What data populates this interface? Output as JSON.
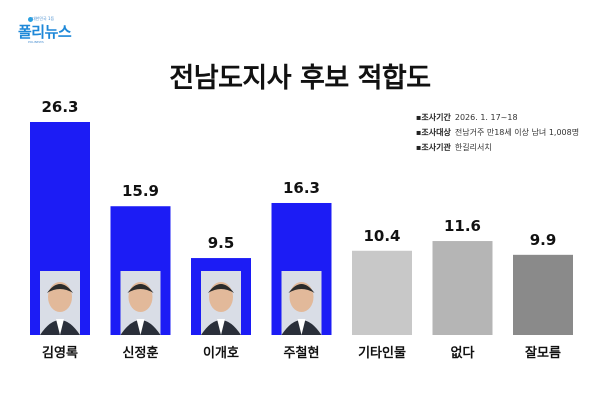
{
  "logo": {
    "top_text": "대한민국 1등",
    "name": "폴리뉴스",
    "sub_text": "POLINEWS"
  },
  "info": {
    "rows": [
      {
        "key": "조사기간",
        "value": "2026. 1. 17~18"
      },
      {
        "key": "조사대상",
        "value": "전남거주 만18세 이상 남녀 1,008명"
      },
      {
        "key": "조사기관",
        "value": "한길리서치"
      }
    ]
  },
  "colors": {
    "highlight": "#1c1cf5",
    "other": "#c8c8c8",
    "other_dark": "#b5b5b5"
  },
  "chart_data": {
    "type": "bar",
    "title": "전남도지사 후보 적합도",
    "categories": [
      "김영록",
      "신정훈",
      "이개호",
      "주철현",
      "기타인물",
      "없다",
      "잘모름"
    ],
    "values": [
      26.3,
      15.9,
      9.5,
      16.3,
      10.4,
      11.6,
      9.9
    ],
    "bar_colors": [
      "#1c1cf5",
      "#1c1cf5",
      "#1c1cf5",
      "#1c1cf5",
      "#c8c8c8",
      "#b5b5b5",
      "#8a8a8a"
    ],
    "has_photo": [
      true,
      true,
      true,
      true,
      false,
      false,
      false
    ],
    "xlabel": "",
    "ylabel": "",
    "ylim": [
      0,
      26.3
    ],
    "grid": false
  }
}
